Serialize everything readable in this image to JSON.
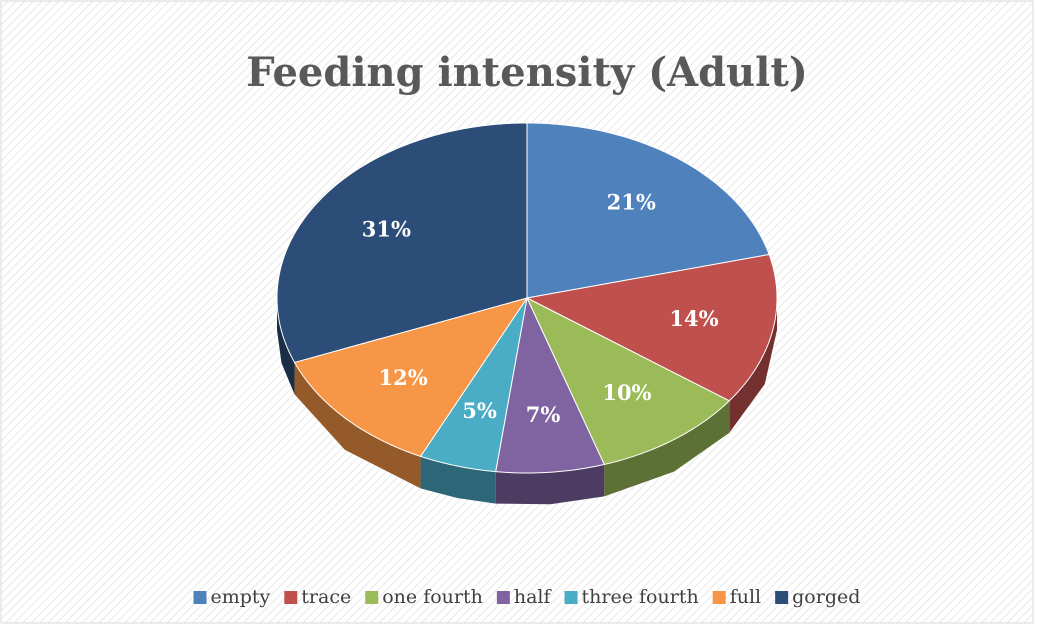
{
  "chart_data": {
    "type": "pie3d",
    "title": "Feeding intensity (Adult)",
    "categories": [
      "empty",
      "trace",
      "one fourth",
      "half",
      "three fourth",
      "full",
      "gorged"
    ],
    "values": [
      21,
      14,
      10,
      7,
      5,
      12,
      31
    ],
    "value_labels": [
      "21%",
      "14%",
      "10%",
      "7%",
      "5%",
      "12%",
      "31%"
    ],
    "colors": [
      "#4f81bd",
      "#c0504d",
      "#9bbb59",
      "#8064a2",
      "#4bacc6",
      "#f79646",
      "#2c4d77"
    ],
    "legend": "bottom"
  }
}
